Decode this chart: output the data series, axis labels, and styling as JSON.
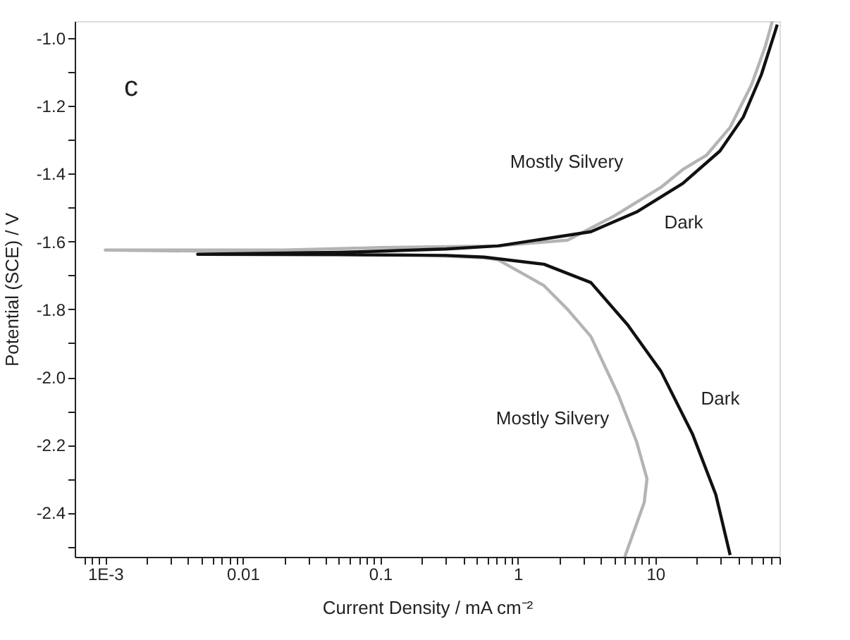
{
  "chart_data": {
    "type": "line",
    "xlabel": "Current Density / mA cm⁻²",
    "ylabel": "Potential (SCE) / V",
    "log": "x",
    "xlim": [
      0.0006,
      80
    ],
    "ylim": [
      -2.53,
      -0.95
    ],
    "xticks": [
      {
        "value": 0.0007,
        "label": null
      },
      {
        "value": 0.0008,
        "label": null
      },
      {
        "value": 0.0009,
        "label": null
      },
      {
        "value": 0.001,
        "label": "1E-3"
      },
      {
        "value": 0.002,
        "label": null
      },
      {
        "value": 0.003,
        "label": null
      },
      {
        "value": 0.004,
        "label": null
      },
      {
        "value": 0.005,
        "label": null
      },
      {
        "value": 0.006,
        "label": null
      },
      {
        "value": 0.007,
        "label": null
      },
      {
        "value": 0.008,
        "label": null
      },
      {
        "value": 0.009,
        "label": null
      },
      0.01,
      {
        "value": 0.02,
        "label": null
      },
      {
        "value": 0.03,
        "label": null
      },
      {
        "value": 0.04,
        "label": null
      },
      {
        "value": 0.05,
        "label": null
      },
      {
        "value": 0.06,
        "label": null
      },
      {
        "value": 0.07,
        "label": null
      },
      {
        "value": 0.08,
        "label": null
      },
      {
        "value": 0.09,
        "label": null
      },
      0.1,
      {
        "value": 0.2,
        "label": null
      },
      {
        "value": 0.3,
        "label": null
      },
      {
        "value": 0.4,
        "label": null
      },
      {
        "value": 0.5,
        "label": null
      },
      {
        "value": 0.6,
        "label": null
      },
      {
        "value": 0.7,
        "label": null
      },
      {
        "value": 0.8,
        "label": null
      },
      {
        "value": 0.9,
        "label": null
      },
      1,
      {
        "value": 2,
        "label": null
      },
      {
        "value": 3,
        "label": null
      },
      {
        "value": 4,
        "label": null
      },
      {
        "value": 5,
        "label": null
      },
      {
        "value": 6,
        "label": null
      },
      {
        "value": 7,
        "label": null
      },
      {
        "value": 8,
        "label": null
      },
      {
        "value": 9,
        "label": null
      },
      10,
      {
        "value": 20,
        "label": null
      },
      {
        "value": 30,
        "label": null
      },
      {
        "value": 40,
        "label": null
      },
      {
        "value": 50,
        "label": null
      },
      {
        "value": 60,
        "label": null
      },
      {
        "value": 70,
        "label": null
      },
      {
        "value": 80,
        "label": null
      }
    ],
    "yticks": [
      {
        "value": -1.0,
        "label": "-1.0"
      },
      {
        "value": -1.1,
        "label": null
      },
      -1.2,
      {
        "value": -1.3,
        "label": null
      },
      -1.4,
      {
        "value": -1.5,
        "label": null
      },
      -1.6,
      {
        "value": -1.7,
        "label": null
      },
      -1.8,
      {
        "value": -1.9,
        "label": null
      },
      {
        "value": -2.0,
        "label": "-2.0"
      },
      {
        "value": -2.1,
        "label": null
      },
      -2.2,
      {
        "value": -2.3,
        "label": null
      },
      -2.4,
      {
        "value": -2.5,
        "label": null
      }
    ],
    "grid": false,
    "marker": "none",
    "line_style": "solid",
    "series": [
      {
        "color": "#b4b4b4",
        "x": [
          6.0,
          8.3,
          8.7,
          7.3,
          5.4,
          3.4,
          2.3,
          1.55,
          0.72,
          0.57,
          0.2,
          0.03,
          0.001,
          0.02,
          0.1,
          0.72,
          2.3,
          5.0,
          11,
          15.8,
          23.5,
          35,
          50,
          63,
          71
        ],
        "values": [
          -2.53,
          -2.37,
          -2.3,
          -2.19,
          -2.054,
          -1.88,
          -1.8,
          -1.73,
          -1.654,
          -1.648,
          -1.64,
          -1.632,
          -1.625,
          -1.625,
          -1.618,
          -1.613,
          -1.596,
          -1.525,
          -1.44,
          -1.388,
          -1.346,
          -1.263,
          -1.138,
          -1.025,
          -0.95
        ]
      },
      {
        "color": "#111111",
        "x": [
          35,
          27.5,
          18.6,
          11,
          6.3,
          3.4,
          1.55,
          0.57,
          0.3,
          0.05,
          0.0047,
          0.05,
          0.3,
          0.72,
          3.4,
          7.3,
          15.8,
          29.5,
          43.6,
          59,
          74,
          77
        ],
        "values": [
          -2.525,
          -2.346,
          -2.167,
          -1.983,
          -1.846,
          -1.721,
          -1.667,
          -1.646,
          -1.641,
          -1.639,
          -1.6375,
          -1.632,
          -1.622,
          -1.613,
          -1.571,
          -1.513,
          -1.429,
          -1.333,
          -1.233,
          -1.108,
          -0.983,
          -0.96
        ]
      }
    ],
    "annotations": [
      "c",
      "Mostly Silvery",
      "Dark",
      "Mostly Silvery",
      "Dark"
    ]
  }
}
